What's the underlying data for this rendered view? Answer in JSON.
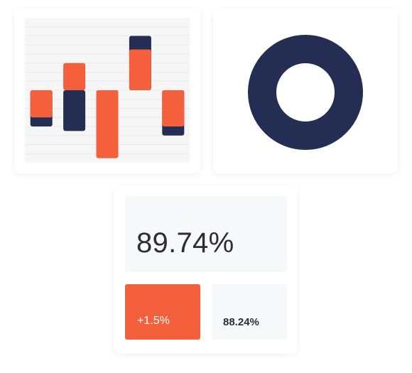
{
  "colors": {
    "navy": "#242e52",
    "orange": "#f3603b",
    "panel": "#f7f8f9",
    "text": "#2a2e39",
    "gridline": "#e8e9ec"
  },
  "chart_data": [
    {
      "type": "bar",
      "chart_subtype": "stacked-overlay-bars",
      "categories": [
        "",
        "",
        "",
        "",
        ""
      ],
      "baseline": 0,
      "ylim": [
        -3.2,
        3.2
      ],
      "grid": true,
      "legend": "none",
      "series": [
        {
          "color": "#242e52",
          "values": [
            -1.6,
            -1.8,
            -1.2,
            2.4,
            -2.0
          ]
        },
        {
          "color": "#f3603b",
          "values": [
            -1.2,
            1.2,
            -3.0,
            1.8,
            -1.6
          ]
        }
      ]
    },
    {
      "type": "pie",
      "chart_subtype": "donut",
      "values": [
        100
      ],
      "colors": [
        "#242e52"
      ],
      "legend": "none"
    }
  ],
  "metrics": {
    "main_value": "89.74%",
    "change_value": "+1.5%",
    "secondary_value": "88.24%"
  }
}
